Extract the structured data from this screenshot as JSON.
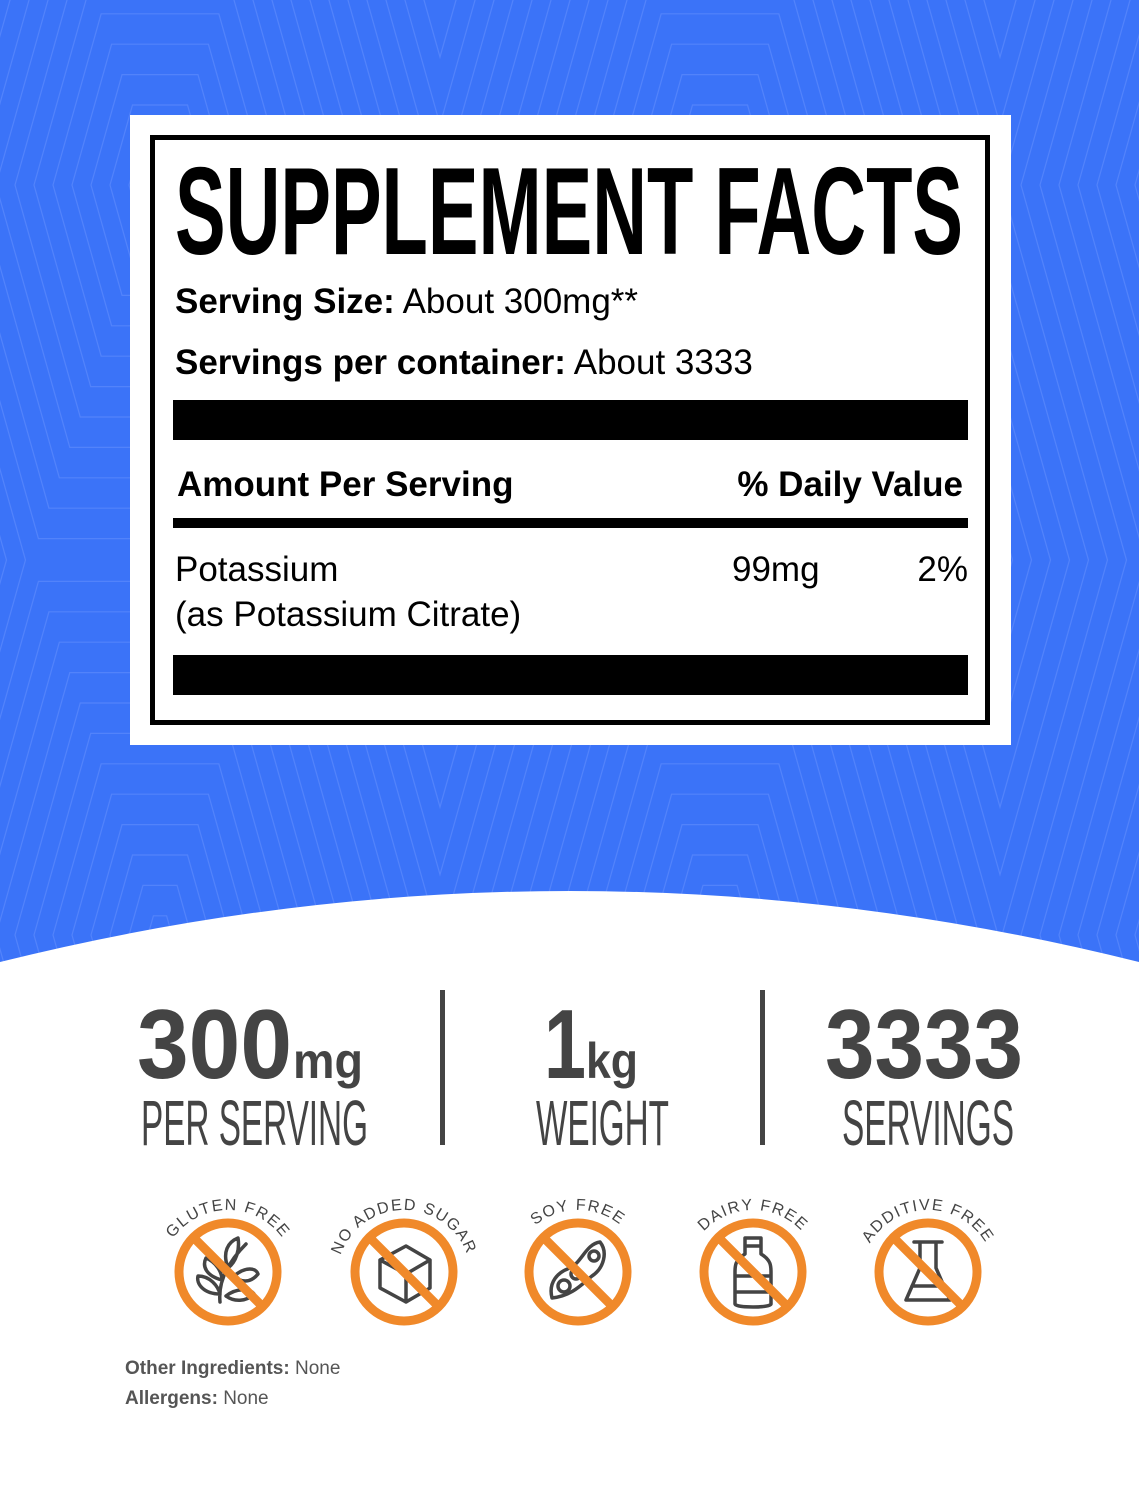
{
  "colors": {
    "background_blue": "#3B73F8",
    "badge_orange": "#F0892A",
    "stat_gray": "#444444"
  },
  "label": {
    "title": "SUPPLEMENT FACTS",
    "serving_size_label": "Serving Size:",
    "serving_size_value": " About 300mg**",
    "servings_label": "Servings per container:",
    "servings_value": " About 3333",
    "amount_header": "Amount Per Serving",
    "dv_header": "% Daily Value",
    "ingredients": [
      {
        "name": "Potassium",
        "sub": "(as Potassium Citrate)",
        "amount": "99mg",
        "dv": "2%"
      }
    ]
  },
  "stats": [
    {
      "value": "300",
      "unit": "mg",
      "caption": "PER SERVING"
    },
    {
      "value": "1",
      "unit": "kg",
      "caption": "WEIGHT"
    },
    {
      "value": "3333",
      "unit": "",
      "caption": "SERVINGS"
    }
  ],
  "badges": [
    {
      "label": "GLUTEN FREE",
      "icon": "wheat-icon"
    },
    {
      "label": "NO ADDED SUGAR",
      "icon": "sugar-cube-icon"
    },
    {
      "label": "SOY FREE",
      "icon": "soybean-icon"
    },
    {
      "label": "DAIRY FREE",
      "icon": "milk-bottle-icon"
    },
    {
      "label": "ADDITIVE FREE",
      "icon": "flask-icon"
    }
  ],
  "footer": {
    "other_label": "Other Ingredients:",
    "other_value": " None",
    "allergens_label": "Allergens:",
    "allergens_value": " None"
  }
}
